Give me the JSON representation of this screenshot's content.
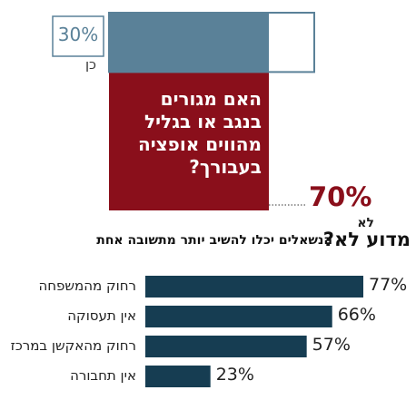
{
  "chart_data": [
    {
      "type": "stacked_column",
      "title": [
        "האם מגורים",
        "בנגב או בגליל",
        "מהווים אופציה",
        "בעבורך?"
      ],
      "series": [
        {
          "name": "כן",
          "color": "#5a8198",
          "values": [
            30
          ],
          "value_labels": [
            "30%"
          ]
        },
        {
          "name": "לא",
          "color": "#8a0f1b",
          "values": [
            70
          ],
          "value_labels": [
            "70%"
          ]
        }
      ]
    },
    {
      "type": "hbar",
      "title": "מדוע לא?",
      "subtitle": "הנשאלים יכלו להשיב יותר מתשובה אחת",
      "categories": [
        "רחוק מהמשפחה",
        "אין תעסוקה",
        "רחוק מהאקשן במרכז",
        "אין תחבורה"
      ],
      "values": [
        77,
        66,
        57,
        23
      ],
      "value_labels": [
        "77%",
        "66%",
        "57%",
        "23%"
      ],
      "color": "#163d52"
    }
  ]
}
